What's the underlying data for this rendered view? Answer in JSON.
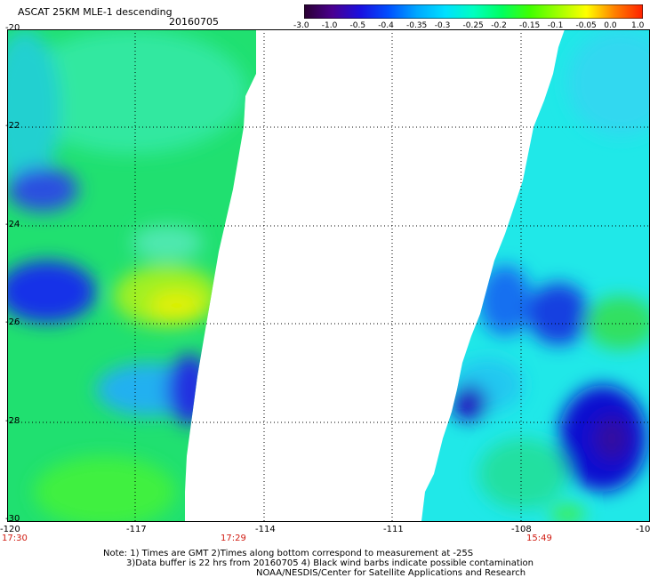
{
  "header": {
    "title": "ASCAT 25KM MLE-1 descending",
    "date": "20160705"
  },
  "colorbar": {
    "labels": [
      "-3.0",
      "-1.0",
      "-0.5",
      "-0.4",
      "-0.35",
      "-0.3",
      "-0.25",
      "-0.2",
      "-0.15",
      "-0.1",
      "-0.05",
      "0.0",
      "1.0"
    ],
    "colors": [
      "#2a0030",
      "#4a0090",
      "#1a10e0",
      "#0050ff",
      "#00a8ff",
      "#00e0ff",
      "#00ffc0",
      "#00ff60",
      "#40ff00",
      "#a0ff00",
      "#ffff00",
      "#ff8000",
      "#ff2000"
    ]
  },
  "axes": {
    "x_ticks": [
      "-120",
      "-117",
      "-114",
      "-111",
      "-108",
      "-10"
    ],
    "y_ticks": [
      "-20",
      "-22",
      "-24",
      "-26",
      "-28",
      "-30"
    ]
  },
  "pass_times": [
    "17:30",
    "17:29",
    "15:49"
  ],
  "notes": {
    "line1": "Note: 1) Times are GMT 2)Times along bottom correspond to measurement at -25S",
    "line2": "3)Data buffer is 22 hrs from 20160705 4) Black wind barbs indicate possible contamination",
    "line3": "NOAA/NESDIS/Center for Satellite Applications and Research"
  }
}
